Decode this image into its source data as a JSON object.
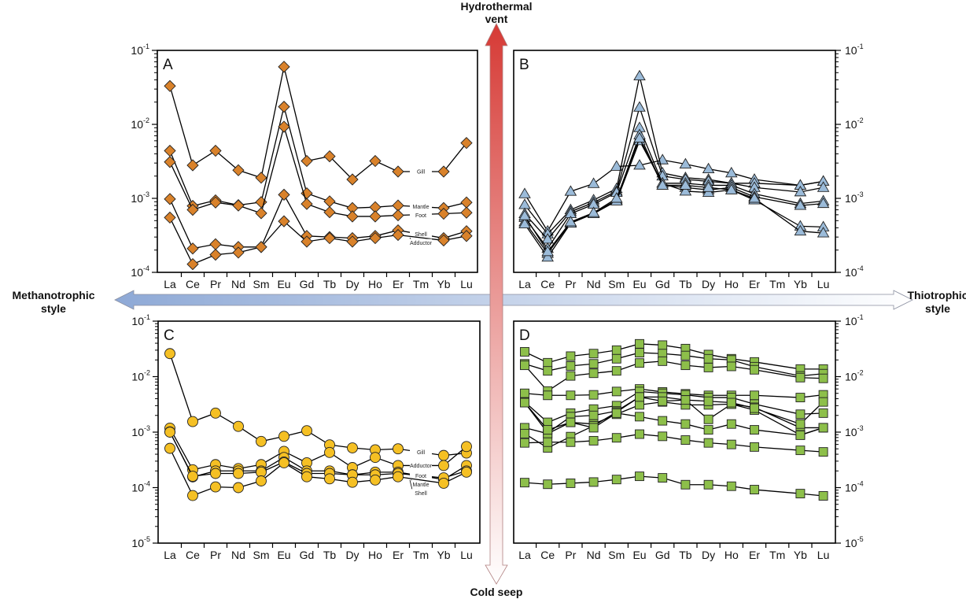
{
  "figure": {
    "vertical_axis": {
      "top_label_line1": "Hydrothermal",
      "top_label_line2": "vent",
      "bottom_label": "Cold seep",
      "top_color": "#d63a35",
      "bottom_color": "#ffffff"
    },
    "horizontal_axis": {
      "left_label_line1": "Methanotrophic",
      "left_label_line2": "style",
      "right_label_line1": "Thiotrophic",
      "right_label_line2": "style",
      "left_color": "#8ea9d6",
      "right_color": "#ffffff"
    }
  },
  "chart_data": [
    {
      "type": "line",
      "panel": "A",
      "y_scale": "log",
      "ylim": [
        0.0001,
        0.1
      ],
      "axis_side": "left",
      "marker": "diamond",
      "marker_color": "#d9822b",
      "y_tick_labels": [
        {
          "base": "10",
          "exp": "-1"
        },
        {
          "base": "10",
          "exp": "-2"
        },
        {
          "base": "10",
          "exp": "-3"
        },
        {
          "base": "10",
          "exp": "-4"
        }
      ],
      "categories": [
        "La",
        "Ce",
        "Pr",
        "Nd",
        "Sm",
        "Eu",
        "Gd",
        "Tb",
        "Dy",
        "Ho",
        "Er",
        "Tm",
        "Yb",
        "Lu"
      ],
      "series": [
        {
          "name": "Gill",
          "values": [
            0.033,
            0.0028,
            0.0044,
            0.0024,
            0.0019,
            0.06,
            0.0032,
            0.0037,
            0.0018,
            0.0032,
            0.0023,
            null,
            0.0023,
            0.0056
          ]
        },
        {
          "name": "Mantle",
          "values": [
            0.0044,
            0.00079,
            0.00094,
            0.00081,
            0.00089,
            0.0173,
            0.00117,
            0.00091,
            0.00074,
            0.00076,
            0.0008,
            null,
            0.00074,
            0.00088
          ]
        },
        {
          "name": "Foot",
          "values": [
            0.0031,
            0.0007,
            0.00088,
            0.0008,
            0.00063,
            0.0093,
            0.00084,
            0.00065,
            0.00057,
            0.00057,
            0.00059,
            null,
            0.00062,
            0.00064
          ]
        },
        {
          "name": "Shell",
          "values": [
            0.00098,
            0.00021,
            0.00024,
            0.00022,
            0.00022,
            0.00112,
            0.00031,
            0.0003,
            0.00029,
            0.00031,
            0.00037,
            null,
            0.00029,
            0.00036
          ]
        },
        {
          "name": "Adductor",
          "values": [
            0.00055,
            0.000129,
            0.000173,
            0.000185,
            0.00022,
            0.00049,
            0.00026,
            0.00029,
            0.00026,
            0.00029,
            0.00032,
            null,
            0.00027,
            0.00031
          ]
        }
      ]
    },
    {
      "type": "line",
      "panel": "B",
      "y_scale": "log",
      "ylim": [
        0.0001,
        0.1
      ],
      "axis_side": "right",
      "marker": "triangle",
      "marker_color": "#9bbbd9",
      "y_tick_labels": [
        {
          "base": "10",
          "exp": "-1"
        },
        {
          "base": "10",
          "exp": "-2"
        },
        {
          "base": "10",
          "exp": "-3"
        },
        {
          "base": "10",
          "exp": "-4"
        }
      ],
      "categories": [
        "La",
        "Ce",
        "Pr",
        "Nd",
        "Sm",
        "Eu",
        "Gd",
        "Tb",
        "Dy",
        "Ho",
        "Er",
        "Tm",
        "Yb",
        "Lu"
      ],
      "series": [
        {
          "values": [
            0.00115,
            0.00036,
            0.00124,
            0.00158,
            0.0027,
            0.0028,
            0.0033,
            0.0029,
            0.0025,
            0.0022,
            0.0018,
            null,
            0.0015,
            0.0017
          ]
        },
        {
          "values": [
            0.00082,
            0.00033,
            0.0007,
            0.00095,
            0.00135,
            0.045,
            0.0022,
            0.0019,
            0.0018,
            0.0016,
            0.0016,
            null,
            0.0015,
            0.0017
          ]
        },
        {
          "values": [
            0.00062,
            0.00028,
            0.00066,
            0.00088,
            0.00125,
            0.017,
            0.002,
            0.0018,
            0.0017,
            0.0016,
            0.0014,
            null,
            0.00122,
            0.0014
          ]
        },
        {
          "values": [
            0.00055,
            0.00021,
            0.00062,
            0.00083,
            0.0012,
            0.009,
            0.0016,
            0.0016,
            0.0015,
            0.0015,
            0.00115,
            null,
            0.00085,
            0.00092
          ]
        },
        {
          "values": [
            0.00048,
            0.00018,
            0.00047,
            0.00063,
            0.00095,
            0.0072,
            0.0015,
            0.0014,
            0.0013,
            0.0014,
            0.00105,
            null,
            0.0008,
            0.00085
          ]
        },
        {
          "values": [
            0.00045,
            0.00016,
            0.00046,
            0.00062,
            0.00092,
            0.006,
            0.0016,
            0.00125,
            0.0012,
            0.0013,
            0.00095,
            null,
            0.00042,
            0.00041
          ]
        },
        {
          "values": [
            0.00058,
            0.00019,
            0.00048,
            0.00064,
            0.001,
            0.0065,
            0.0015,
            0.0015,
            0.0014,
            0.0013,
            0.001,
            null,
            0.00036,
            0.00034
          ]
        }
      ]
    },
    {
      "type": "line",
      "panel": "C",
      "y_scale": "log",
      "ylim": [
        1e-05,
        0.1
      ],
      "axis_side": "left",
      "marker": "circle",
      "marker_color": "#f5c024",
      "y_tick_labels": [
        {
          "base": "10",
          "exp": "-1"
        },
        {
          "base": "10",
          "exp": "-2"
        },
        {
          "base": "10",
          "exp": "-3"
        },
        {
          "base": "10",
          "exp": "-4"
        },
        {
          "base": "10",
          "exp": "-5"
        }
      ],
      "categories": [
        "La",
        "Ce",
        "Pr",
        "Nd",
        "Sm",
        "Eu",
        "Gd",
        "Tb",
        "Dy",
        "Ho",
        "Er",
        "Tm",
        "Yb",
        "Lu"
      ],
      "series": [
        {
          "name": "Gill",
          "values": [
            0.026,
            0.00155,
            0.0022,
            0.00127,
            0.00068,
            0.00084,
            0.00106,
            0.00059,
            0.00052,
            0.00048,
            0.0005,
            null,
            0.00038,
            0.00042
          ]
        },
        {
          "name": "Adductor",
          "values": [
            0.00118,
            0.00021,
            0.00026,
            0.00022,
            0.00026,
            0.00045,
            0.00028,
            0.00043,
            0.00023,
            0.00035,
            0.00025,
            null,
            0.00025,
            0.00055
          ]
        },
        {
          "name": "Mantle",
          "values": [
            0.00101,
            0.000156,
            0.0002,
            0.0002,
            0.0002,
            0.00035,
            0.0002,
            0.0002,
            0.00017,
            0.00019,
            0.00019,
            null,
            0.00014,
            0.00025
          ]
        },
        {
          "name": "Foot",
          "values": [
            0.001,
            0.00016,
            0.00018,
            0.00018,
            0.00019,
            0.00029,
            0.00018,
            0.00018,
            0.00017,
            0.00017,
            0.00018,
            null,
            0.00015,
            0.0002
          ]
        },
        {
          "name": "Shell",
          "values": [
            0.00051,
            7.2e-05,
            0.000103,
            0.0001,
            0.000132,
            0.00028,
            0.000157,
            0.000144,
            0.000125,
            0.000137,
            0.000157,
            null,
            0.00012,
            0.00019
          ]
        }
      ]
    },
    {
      "type": "line",
      "panel": "D",
      "y_scale": "log",
      "ylim": [
        1e-05,
        0.1
      ],
      "axis_side": "right",
      "marker": "square",
      "marker_color": "#8dbf4a",
      "y_tick_labels": [
        {
          "base": "10",
          "exp": "-1"
        },
        {
          "base": "10",
          "exp": "-2"
        },
        {
          "base": "10",
          "exp": "-3"
        },
        {
          "base": "10",
          "exp": "-4"
        },
        {
          "base": "10",
          "exp": "-5"
        }
      ],
      "categories": [
        "La",
        "Ce",
        "Pr",
        "Nd",
        "Sm",
        "Eu",
        "Gd",
        "Tb",
        "Dy",
        "Ho",
        "Er",
        "Tm",
        "Yb",
        "Lu"
      ],
      "series": [
        {
          "values": [
            0.028,
            0.0178,
            0.0234,
            0.026,
            0.03,
            0.039,
            0.037,
            0.032,
            0.025,
            0.021,
            0.0184,
            null,
            0.0137,
            0.0137
          ]
        },
        {
          "values": [
            0.017,
            0.0127,
            0.0156,
            0.017,
            0.021,
            0.027,
            0.026,
            0.024,
            0.021,
            0.02,
            0.0151,
            null,
            0.0103,
            0.0113
          ]
        },
        {
          "values": [
            0.016,
            0.0055,
            0.0103,
            0.0115,
            0.0127,
            0.0176,
            0.019,
            0.016,
            0.0146,
            0.0153,
            0.0133,
            null,
            0.0096,
            0.0093
          ]
        },
        {
          "values": [
            0.005,
            0.0046,
            0.0046,
            0.0047,
            0.0054,
            0.006,
            0.0053,
            0.0049,
            0.0046,
            0.0046,
            0.0046,
            null,
            0.0042,
            0.0047
          ]
        },
        {
          "values": [
            0.0035,
            0.0015,
            0.0022,
            0.0026,
            0.003,
            0.0054,
            0.005,
            0.0047,
            0.0042,
            0.0042,
            0.0032,
            null,
            0.0021,
            0.0022
          ]
        },
        {
          "values": [
            0.0034,
            0.00097,
            0.0019,
            0.002,
            0.0024,
            0.0043,
            0.0043,
            0.0038,
            0.0017,
            0.0032,
            0.0028,
            null,
            0.0012,
            0.0012
          ]
        },
        {
          "values": [
            0.0012,
            0.00094,
            0.0015,
            0.0014,
            0.0021,
            0.0031,
            0.0035,
            0.0031,
            0.0031,
            0.0032,
            0.0025,
            null,
            0.00089,
            0.0012
          ]
        },
        {
          "values": [
            0.00094,
            0.00052,
            0.00083,
            0.0013,
            0.0023,
            0.0043,
            0.0036,
            0.0038,
            0.0036,
            0.0034,
            0.0027,
            null,
            0.0014,
            0.0035
          ]
        },
        {
          "values": [
            0.0034,
            0.0011,
            0.0015,
            0.0012,
            0.0022,
            0.0019,
            0.0016,
            0.0014,
            0.0011,
            0.0014,
            0.0011,
            null,
            0.00088,
            0.0012
          ]
        },
        {
          "values": [
            0.00064,
            0.00066,
            0.00066,
            0.0007,
            0.00079,
            0.00092,
            0.00084,
            0.00072,
            0.00064,
            0.0006,
            0.00054,
            null,
            0.00047,
            0.00044
          ]
        },
        {
          "values": [
            0.000123,
            0.000115,
            0.00012,
            0.000126,
            0.00014,
            0.00016,
            0.00015,
            0.000113,
            0.000113,
            0.000106,
            9.2e-05,
            null,
            7.8e-05,
            7.1e-05
          ]
        }
      ]
    }
  ]
}
